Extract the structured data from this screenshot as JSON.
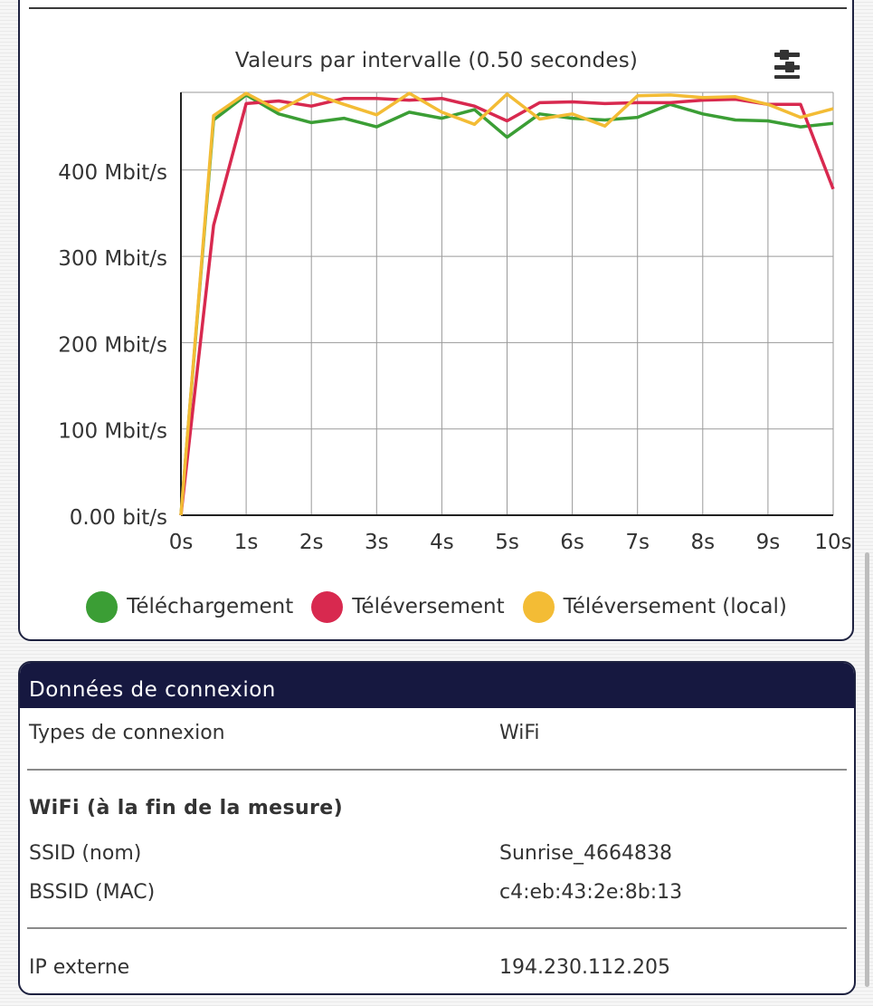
{
  "chart_data": {
    "type": "line",
    "title": "Valeurs par intervalle (0.50 secondes)",
    "x": [
      0,
      0.5,
      1,
      1.5,
      2,
      2.5,
      3,
      3.5,
      4,
      4.5,
      5,
      5.5,
      6,
      6.5,
      7,
      7.5,
      8,
      8.5,
      9,
      9.5,
      10
    ],
    "x_tick_labels": [
      "0s",
      "1s",
      "2s",
      "3s",
      "4s",
      "5s",
      "6s",
      "7s",
      "8s",
      "9s",
      "10s"
    ],
    "y_tick_labels": [
      "0.00 bit/s",
      "100 Mbit/s",
      "200 Mbit/s",
      "300 Mbit/s",
      "400 Mbit/s"
    ],
    "y_ticks": [
      0,
      100,
      200,
      300,
      400
    ],
    "xlim": [
      0,
      10
    ],
    "ylim": [
      0,
      490
    ],
    "grid": true,
    "legend_position": "bottom",
    "series": [
      {
        "name": "Téléchargement",
        "color": "#3b9e35",
        "values": [
          0,
          458,
          487,
          465,
          455,
          460,
          450,
          467,
          460,
          470,
          438,
          465,
          460,
          458,
          461,
          476,
          465,
          458,
          457,
          450,
          454
        ]
      },
      {
        "name": "Téléversement",
        "color": "#d8294f",
        "values": [
          0,
          336,
          477,
          480,
          474,
          483,
          483,
          481,
          483,
          474,
          457,
          478,
          479,
          477,
          478,
          478,
          481,
          482,
          476,
          476,
          378
        ]
      },
      {
        "name": "Téléversement (local)",
        "color": "#f3bc35",
        "values": [
          0,
          463,
          489,
          469,
          489,
          476,
          464,
          489,
          467,
          453,
          488,
          459,
          465,
          451,
          486,
          487,
          484,
          485,
          476,
          461,
          471
        ]
      }
    ]
  },
  "connection": {
    "header": "Données de connexion",
    "type_label": "Types de connexion",
    "type_value": "WiFi",
    "wifi_subtitle": "WiFi (à la fin de la mesure)",
    "ssid_label": "SSID (nom)",
    "ssid_value": "Sunrise_4664838",
    "bssid_label": "BSSID (MAC)",
    "bssid_value": "c4:eb:43:2e:8b:13",
    "ip_label": "IP externe",
    "ip_value": "194.230.112.205"
  },
  "icons": {
    "filter": "filter-sliders-icon"
  }
}
